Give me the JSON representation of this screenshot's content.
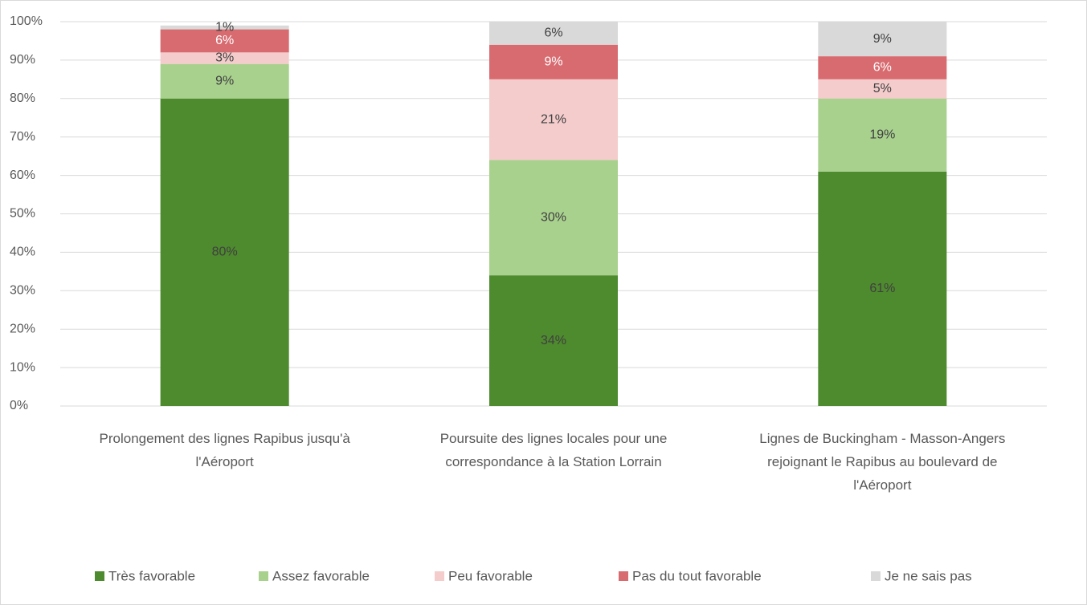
{
  "chart_data": {
    "type": "stacked_bar",
    "categories": [
      "Prolongement des lignes Rapibus jusqu'à l'Aéroport",
      "Poursuite des lignes locales pour une correspondance à la Station Lorrain",
      "Lignes de Buckingham - Masson-Angers rejoignant le Rapibus au boulevard de l'Aéroport"
    ],
    "series": [
      {
        "name": "Très favorable",
        "color": "#4e8a2e",
        "values": [
          80,
          34,
          61
        ],
        "value_labels": [
          "80%",
          "34%",
          "61%"
        ]
      },
      {
        "name": "Assez favorable",
        "color": "#a9d18e",
        "values": [
          9,
          30,
          19
        ],
        "value_labels": [
          "9%",
          "30%",
          "19%"
        ]
      },
      {
        "name": "Peu favorable",
        "color": "#f4cccc",
        "values": [
          3,
          21,
          5
        ],
        "value_labels": [
          "3%",
          "21%",
          "5%"
        ]
      },
      {
        "name": "Pas du tout favorable",
        "color": "#d86b70",
        "values": [
          6,
          9,
          6
        ],
        "value_labels": [
          "6%",
          "9%",
          "6%"
        ]
      },
      {
        "name": "Je ne sais pas",
        "color": "#d9d9d9",
        "values": [
          1,
          6,
          9
        ],
        "value_labels": [
          "1%",
          "6%",
          "9%"
        ]
      }
    ],
    "ylim": [
      0,
      100
    ],
    "yticks": [
      {
        "value": 0,
        "label": "0%"
      },
      {
        "value": 10,
        "label": "10%"
      },
      {
        "value": 20,
        "label": "20%"
      },
      {
        "value": 30,
        "label": "30%"
      },
      {
        "value": 40,
        "label": "40%"
      },
      {
        "value": 50,
        "label": "50%"
      },
      {
        "value": 60,
        "label": "60%"
      },
      {
        "value": 70,
        "label": "70%"
      },
      {
        "value": 80,
        "label": "80%"
      },
      {
        "value": 90,
        "label": "90%"
      },
      {
        "value": 100,
        "label": "100%"
      }
    ],
    "grid": true,
    "legend": "bottom"
  }
}
